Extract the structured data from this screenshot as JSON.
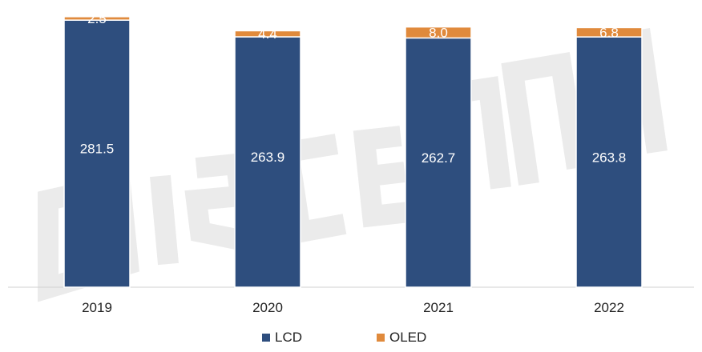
{
  "chart_data": {
    "type": "bar",
    "stacked": true,
    "categories": [
      "2019",
      "2020",
      "2021",
      "2022"
    ],
    "series": [
      {
        "name": "LCD",
        "values": [
          281.5,
          263.9,
          262.7,
          263.8
        ],
        "color": "#2e4e7e"
      },
      {
        "name": "OLED",
        "values": [
          2.5,
          4.4,
          8.0,
          6.8
        ],
        "color": "#e08a3c"
      }
    ],
    "value_labels": {
      "LCD": [
        "281.5",
        "263.9",
        "262.7",
        "263.8"
      ],
      "OLED": [
        "2.5",
        "4.4",
        "8.0",
        "6.8"
      ]
    },
    "title": "",
    "xlabel": "",
    "ylabel": "",
    "legend_position": "bottom",
    "grid": false
  },
  "watermark": {
    "text": "DISCIEN",
    "color": "#e6e6e6"
  }
}
